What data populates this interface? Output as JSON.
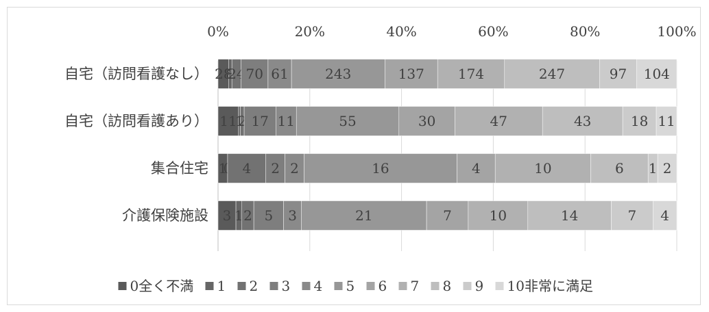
{
  "chart_data": {
    "type": "bar",
    "orientation": "horizontal",
    "stacked": "percent",
    "categories": [
      "自宅（訪問看護なし）",
      "自宅（訪問看護あり）",
      "集合住宅",
      "介護保険施設"
    ],
    "x_ticks": [
      "0%",
      "20%",
      "40%",
      "60%",
      "80%",
      "100%"
    ],
    "xlim": [
      0,
      100
    ],
    "grid": true,
    "legend_position": "bottom",
    "series": [
      {
        "name": "0全く不満",
        "color": "#5a5a5a",
        "values": [
          28,
          11,
          1,
          3
        ]
      },
      {
        "name": "1",
        "color": "#666666",
        "values": [
          8,
          1,
          0,
          1
        ]
      },
      {
        "name": "2",
        "color": "#727272",
        "values": [
          24,
          2,
          4,
          2
        ]
      },
      {
        "name": "3",
        "color": "#7e7e7e",
        "values": [
          70,
          17,
          2,
          5
        ]
      },
      {
        "name": "4",
        "color": "#8a8a8a",
        "values": [
          61,
          11,
          2,
          3
        ]
      },
      {
        "name": "5",
        "color": "#979797",
        "values": [
          243,
          55,
          16,
          21
        ]
      },
      {
        "name": "6",
        "color": "#a4a4a4",
        "values": [
          137,
          30,
          4,
          7
        ]
      },
      {
        "name": "7",
        "color": "#b1b1b1",
        "values": [
          174,
          47,
          10,
          10
        ]
      },
      {
        "name": "8",
        "color": "#bebebe",
        "values": [
          247,
          43,
          6,
          14
        ]
      },
      {
        "name": "9",
        "color": "#cbcbcb",
        "values": [
          97,
          18,
          1,
          7
        ]
      },
      {
        "name": "10非常に満足",
        "color": "#d8d8d8",
        "values": [
          104,
          11,
          2,
          4
        ]
      }
    ]
  }
}
